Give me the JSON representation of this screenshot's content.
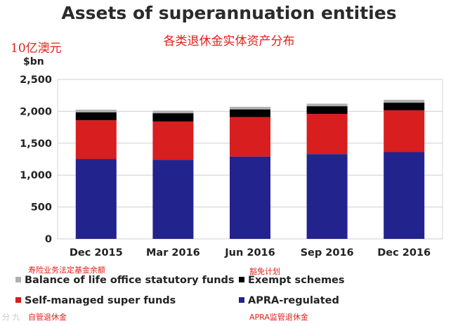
{
  "chart_data": {
    "type": "bar",
    "stacked": true,
    "title": "Assets of superannuation entities",
    "subtitle": "各类退休金实体资产分布",
    "unit_note": "10亿澳元",
    "ylabel": "$bn",
    "ylim": [
      0,
      2500
    ],
    "yticks": [
      0,
      500,
      1000,
      1500,
      2000,
      2500
    ],
    "ytick_labels": [
      "0",
      "500",
      "1,000",
      "1,500",
      "2,000",
      "2,500"
    ],
    "grid": true,
    "legend_position": "bottom",
    "categories": [
      "Dec 2015",
      "Mar 2016",
      "Jun 2016",
      "Sep 2016",
      "Dec 2016"
    ],
    "series": [
      {
        "name": "APRA-regulated",
        "name_cn": "APRA监管退休金",
        "color": "#23238e",
        "values": [
          1250,
          1240,
          1290,
          1330,
          1360
        ]
      },
      {
        "name": "Self-managed super funds",
        "name_cn": "自管退休金",
        "color": "#d81e1e",
        "values": [
          610,
          600,
          620,
          630,
          655
        ]
      },
      {
        "name": "Exempt schemes",
        "name_cn": "豁免计划",
        "color": "#000000",
        "values": [
          125,
          130,
          120,
          120,
          120
        ]
      },
      {
        "name": "Balance of life office statutory funds",
        "name_cn": "寿险业务法定基金余额",
        "color": "#b0b0b0",
        "values": [
          40,
          40,
          40,
          40,
          45
        ]
      }
    ]
  },
  "watermark": "分 九"
}
